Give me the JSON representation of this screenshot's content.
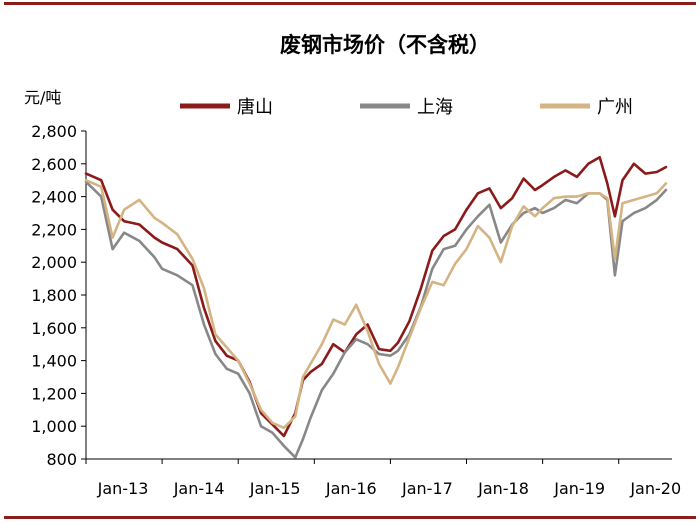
{
  "chart_data": {
    "type": "line",
    "title": "废钢市场价（不含税）",
    "ylabel": "元/吨",
    "xlabel": "",
    "ylim": [
      800,
      2800
    ],
    "yticks": [
      800,
      1000,
      1200,
      1400,
      1600,
      1800,
      2000,
      2200,
      2400,
      2600,
      2800
    ],
    "ytick_labels": [
      "800",
      "1,000",
      "1,200",
      "1,400",
      "1,600",
      "1,800",
      "2,000",
      "2,200",
      "2,400",
      "2,600",
      "2,800"
    ],
    "xlim": [
      2013.0,
      2020.7
    ],
    "xticks": [
      2013,
      2014,
      2015,
      2016,
      2017,
      2018,
      2019,
      2020
    ],
    "xtick_labels": [
      "Jan-13",
      "Jan-14",
      "Jan-15",
      "Jan-16",
      "Jan-17",
      "Jan-18",
      "Jan-19",
      "Jan-20"
    ],
    "grid": false,
    "legend_position": "top",
    "series": [
      {
        "name": "唐山",
        "color": "#8b1a1a",
        "x": [
          2013.0,
          2013.2,
          2013.35,
          2013.5,
          2013.7,
          2013.9,
          2014.0,
          2014.2,
          2014.4,
          2014.55,
          2014.7,
          2014.85,
          2015.0,
          2015.15,
          2015.3,
          2015.45,
          2015.6,
          2015.75,
          2015.85,
          2015.95,
          2016.1,
          2016.25,
          2016.4,
          2016.55,
          2016.7,
          2016.85,
          2017.0,
          2017.1,
          2017.25,
          2017.4,
          2017.55,
          2017.7,
          2017.85,
          2018.0,
          2018.15,
          2018.3,
          2018.45,
          2018.6,
          2018.75,
          2018.9,
          2019.0,
          2019.15,
          2019.3,
          2019.45,
          2019.6,
          2019.75,
          2019.85,
          2019.95,
          2020.05,
          2020.2,
          2020.35,
          2020.5,
          2020.62
        ],
        "y": [
          2540,
          2500,
          2320,
          2250,
          2230,
          2150,
          2120,
          2080,
          1980,
          1720,
          1520,
          1430,
          1400,
          1270,
          1080,
          1010,
          940,
          1080,
          1280,
          1330,
          1380,
          1500,
          1450,
          1560,
          1620,
          1470,
          1460,
          1510,
          1640,
          1840,
          2070,
          2160,
          2200,
          2320,
          2420,
          2450,
          2330,
          2390,
          2510,
          2440,
          2470,
          2520,
          2560,
          2520,
          2600,
          2640,
          2480,
          2280,
          2500,
          2600,
          2540,
          2550,
          2580
        ]
      },
      {
        "name": "上海",
        "color": "#888888",
        "x": [
          2013.0,
          2013.2,
          2013.35,
          2013.5,
          2013.7,
          2013.9,
          2014.0,
          2014.2,
          2014.4,
          2014.55,
          2014.7,
          2014.85,
          2015.0,
          2015.15,
          2015.3,
          2015.45,
          2015.6,
          2015.75,
          2015.85,
          2015.95,
          2016.1,
          2016.25,
          2016.4,
          2016.55,
          2016.7,
          2016.85,
          2017.0,
          2017.1,
          2017.25,
          2017.4,
          2017.55,
          2017.7,
          2017.85,
          2018.0,
          2018.15,
          2018.3,
          2018.45,
          2018.6,
          2018.75,
          2018.9,
          2019.0,
          2019.15,
          2019.3,
          2019.45,
          2019.6,
          2019.75,
          2019.85,
          2019.95,
          2020.05,
          2020.2,
          2020.35,
          2020.5,
          2020.62
        ],
        "y": [
          2490,
          2400,
          2080,
          2180,
          2130,
          2030,
          1960,
          1920,
          1860,
          1620,
          1440,
          1350,
          1320,
          1200,
          1000,
          960,
          880,
          810,
          920,
          1050,
          1220,
          1320,
          1450,
          1530,
          1500,
          1440,
          1430,
          1460,
          1560,
          1730,
          1960,
          2080,
          2100,
          2200,
          2280,
          2350,
          2120,
          2230,
          2300,
          2330,
          2300,
          2330,
          2380,
          2360,
          2420,
          2420,
          2380,
          1920,
          2250,
          2300,
          2330,
          2380,
          2440
        ]
      },
      {
        "name": "广州",
        "color": "#d4b483",
        "x": [
          2013.0,
          2013.2,
          2013.35,
          2013.5,
          2013.7,
          2013.9,
          2014.0,
          2014.2,
          2014.4,
          2014.55,
          2014.7,
          2014.85,
          2015.0,
          2015.15,
          2015.3,
          2015.45,
          2015.6,
          2015.75,
          2015.85,
          2015.95,
          2016.1,
          2016.25,
          2016.4,
          2016.55,
          2016.7,
          2016.85,
          2017.0,
          2017.1,
          2017.25,
          2017.4,
          2017.55,
          2017.7,
          2017.85,
          2018.0,
          2018.15,
          2018.3,
          2018.45,
          2018.6,
          2018.75,
          2018.9,
          2019.0,
          2019.15,
          2019.3,
          2019.45,
          2019.6,
          2019.75,
          2019.85,
          2019.95,
          2020.05,
          2020.2,
          2020.35,
          2020.5,
          2020.62
        ],
        "y": [
          2500,
          2460,
          2150,
          2320,
          2380,
          2270,
          2240,
          2170,
          2020,
          1840,
          1560,
          1480,
          1400,
          1260,
          1100,
          1020,
          990,
          1060,
          1300,
          1380,
          1500,
          1650,
          1620,
          1740,
          1580,
          1380,
          1260,
          1360,
          1540,
          1720,
          1880,
          1860,
          1990,
          2080,
          2220,
          2150,
          2000,
          2220,
          2340,
          2280,
          2330,
          2390,
          2400,
          2400,
          2420,
          2420,
          2390,
          2020,
          2360,
          2380,
          2400,
          2420,
          2480
        ]
      }
    ]
  }
}
